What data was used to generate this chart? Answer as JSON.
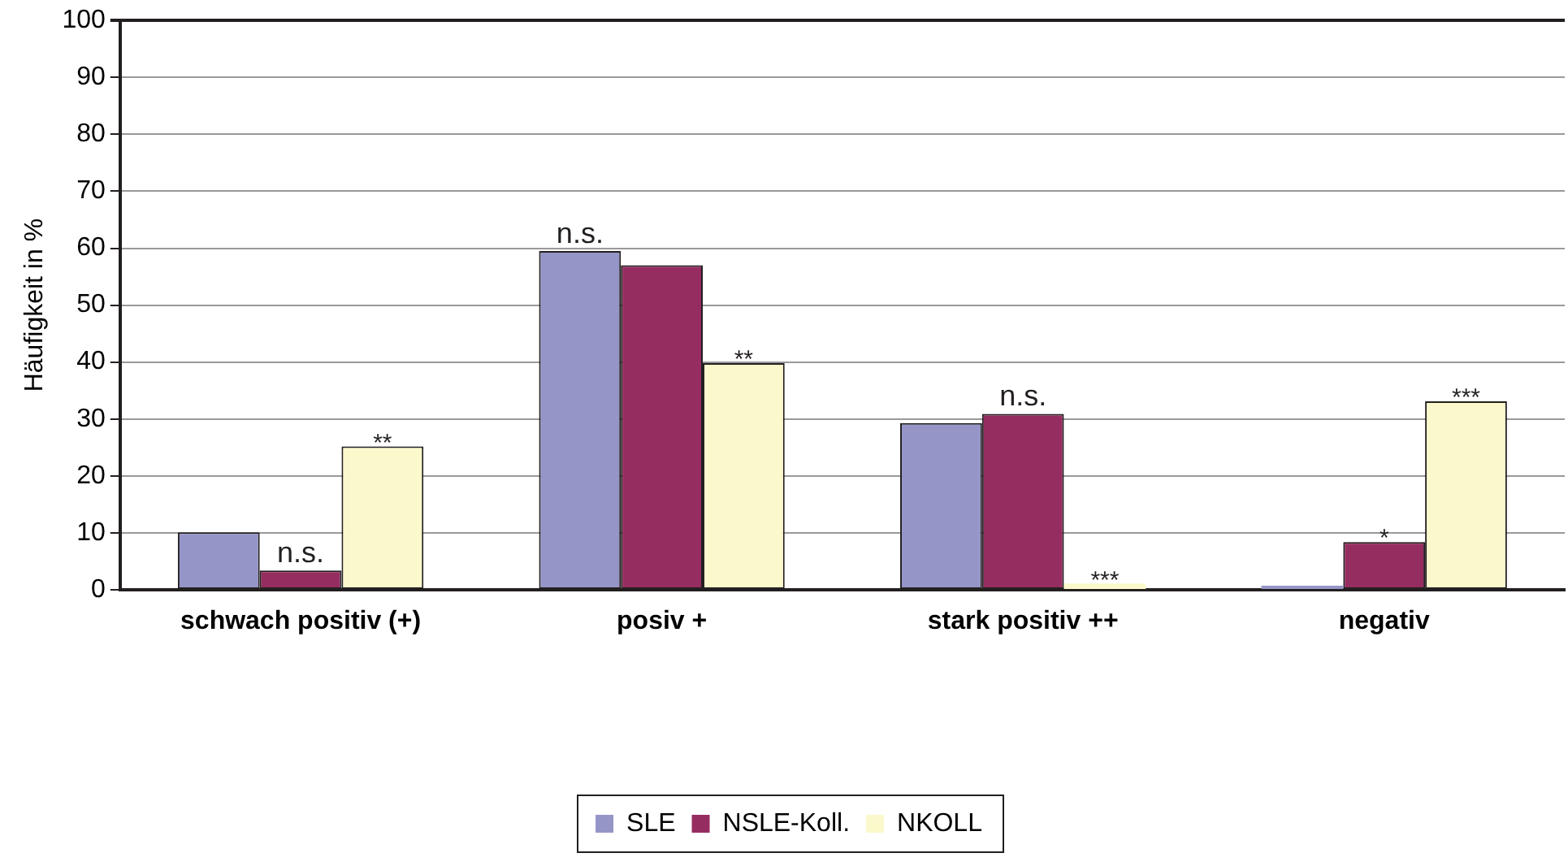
{
  "chart_data": {
    "type": "bar",
    "ylabel": "Häufigkeit in %",
    "categories": [
      "schwach positiv (+)",
      "posiv +",
      "stark positiv ++",
      "negativ"
    ],
    "series": [
      {
        "name": "SLE",
        "color": "#9595c8",
        "values": [
          10.1,
          59.5,
          29.3,
          0.7
        ]
      },
      {
        "name": "NSLE-Koll.",
        "color": "#962d61",
        "values": [
          3.4,
          57.0,
          30.9,
          8.4
        ]
      },
      {
        "name": "NKOLL",
        "color": "#fbf8cc",
        "values": [
          25.2,
          39.8,
          1.1,
          33.1
        ]
      }
    ],
    "ylim": [
      0,
      100
    ],
    "yticks": [
      0,
      10,
      20,
      30,
      40,
      50,
      60,
      70,
      80,
      90,
      100
    ],
    "grid": "y",
    "legend": "bottom",
    "annotations": [
      {
        "text": "n.s.",
        "x": "schwach positiv (+)",
        "y": 3.4
      },
      {
        "text": "**",
        "y": 25.2
      },
      {
        "text": "n.s.",
        "y": 59.5
      },
      {
        "text": "**",
        "y": 39.8
      },
      {
        "text": "n.s.",
        "x": "stark positiv ++",
        "y": 30.9
      },
      {
        "text": "***",
        "x": "stark positiv ++",
        "y": 1.1
      },
      {
        "text": "*",
        "x": "negativ",
        "y": 8.4
      },
      {
        "text": "***",
        "y": 33.1
      }
    ]
  }
}
